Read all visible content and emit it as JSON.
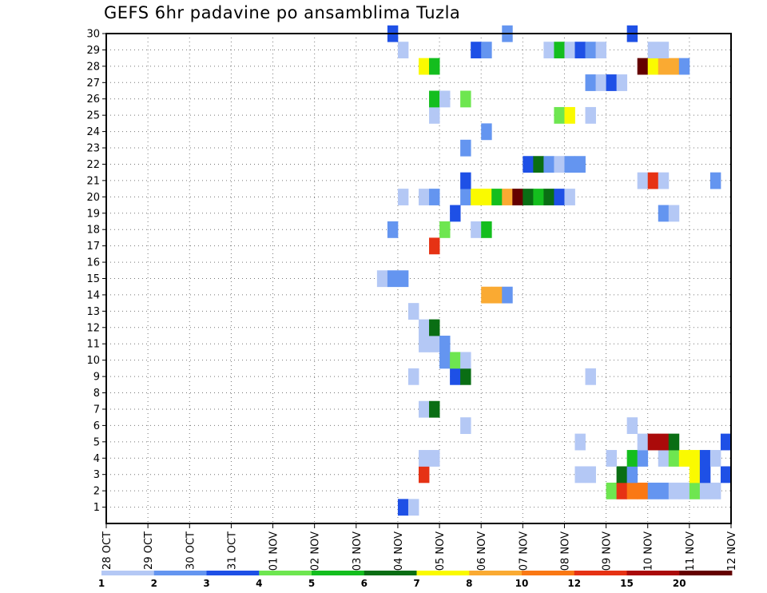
{
  "chart_data": {
    "type": "heatmap",
    "title": "GEFS 6hr padavine po ansamblima Tuzla",
    "x_tick_labels": [
      "28 OCT",
      "29 OCT",
      "30 OCT",
      "31 OCT",
      "01 NOV",
      "02 NOV",
      "03 NOV",
      "04 NOV",
      "05 NOV",
      "06 NOV",
      "07 NOV",
      "08 NOV",
      "09 NOV",
      "10 NOV",
      "11 NOV",
      "12 NOV"
    ],
    "y_tick_labels": [
      "1",
      "2",
      "3",
      "4",
      "5",
      "6",
      "7",
      "8",
      "9",
      "10",
      "11",
      "12",
      "13",
      "14",
      "15",
      "16",
      "17",
      "18",
      "19",
      "20",
      "21",
      "22",
      "23",
      "24",
      "25",
      "26",
      "27",
      "28",
      "29",
      "30"
    ],
    "y_range": [
      0,
      30
    ],
    "time_steps_per_day": 4,
    "grid": true,
    "colorbar": {
      "labels": [
        "1",
        "2",
        "3",
        "4",
        "5",
        "6",
        "7",
        "8",
        "10",
        "12",
        "15",
        "20"
      ],
      "colors": [
        "#b4c8f5",
        "#6495f0",
        "#1e50e6",
        "#6ee650",
        "#14be1e",
        "#0a6e14",
        "#fafa00",
        "#faaa32",
        "#fa7814",
        "#e63214",
        "#aa0a0a",
        "#640000"
      ]
    },
    "cells_format": "member: [[time_index, color_class], ...]  time_index = 6-hour steps from 28 OCT 00Z; color_class = index into colorbar.colors",
    "cells": {
      "30": [
        [
          27,
          2
        ],
        [
          38,
          1
        ],
        [
          50,
          2
        ]
      ],
      "29": [
        [
          28,
          0
        ],
        [
          35,
          2
        ],
        [
          36,
          1
        ],
        [
          42,
          0
        ],
        [
          43,
          4
        ],
        [
          44,
          0
        ],
        [
          45,
          2
        ],
        [
          46,
          1
        ],
        [
          47,
          0
        ],
        [
          52,
          0
        ],
        [
          53,
          0
        ]
      ],
      "28": [
        [
          30,
          6
        ],
        [
          31,
          4
        ],
        [
          51,
          11
        ],
        [
          52,
          6
        ],
        [
          53,
          7
        ],
        [
          54,
          7
        ],
        [
          55,
          1
        ]
      ],
      "27": [
        [
          46,
          1
        ],
        [
          47,
          0
        ],
        [
          48,
          2
        ],
        [
          49,
          0
        ]
      ],
      "26": [
        [
          31,
          4
        ],
        [
          32,
          0
        ],
        [
          34,
          3
        ]
      ],
      "25": [
        [
          31,
          0
        ],
        [
          43,
          3
        ],
        [
          44,
          6
        ],
        [
          46,
          0
        ]
      ],
      "24": [
        [
          36,
          1
        ]
      ],
      "23": [
        [
          34,
          1
        ]
      ],
      "22": [
        [
          40,
          2
        ],
        [
          41,
          5
        ],
        [
          42,
          1
        ],
        [
          43,
          0
        ],
        [
          44,
          1
        ],
        [
          45,
          1
        ]
      ],
      "21": [
        [
          34,
          2
        ],
        [
          51,
          0
        ],
        [
          52,
          9
        ],
        [
          53,
          0
        ],
        [
          58,
          1
        ]
      ],
      "20": [
        [
          28,
          0
        ],
        [
          30,
          0
        ],
        [
          31,
          1
        ],
        [
          34,
          1
        ],
        [
          35,
          6
        ],
        [
          36,
          6
        ],
        [
          37,
          4
        ],
        [
          38,
          7
        ],
        [
          39,
          11
        ],
        [
          40,
          5
        ],
        [
          41,
          4
        ],
        [
          42,
          5
        ],
        [
          43,
          2
        ],
        [
          44,
          0
        ]
      ],
      "19": [
        [
          33,
          2
        ],
        [
          53,
          1
        ],
        [
          54,
          0
        ]
      ],
      "18": [
        [
          27,
          1
        ],
        [
          32,
          3
        ],
        [
          35,
          0
        ],
        [
          36,
          4
        ]
      ],
      "17": [
        [
          31,
          9
        ]
      ],
      "16": [],
      "15": [
        [
          26,
          0
        ],
        [
          27,
          1
        ],
        [
          28,
          1
        ]
      ],
      "14": [
        [
          36,
          7
        ],
        [
          37,
          7
        ],
        [
          38,
          1
        ]
      ],
      "13": [
        [
          29,
          0
        ]
      ],
      "12": [
        [
          30,
          0
        ],
        [
          31,
          5
        ]
      ],
      "11": [
        [
          30,
          0
        ],
        [
          31,
          0
        ],
        [
          32,
          1
        ]
      ],
      "10": [
        [
          32,
          1
        ],
        [
          33,
          3
        ],
        [
          34,
          0
        ]
      ],
      "9": [
        [
          29,
          0
        ],
        [
          33,
          2
        ],
        [
          34,
          5
        ],
        [
          46,
          0
        ]
      ],
      "8": [],
      "7": [
        [
          30,
          0
        ],
        [
          31,
          5
        ]
      ],
      "6": [
        [
          34,
          0
        ],
        [
          50,
          0
        ]
      ],
      "5": [
        [
          45,
          0
        ],
        [
          51,
          0
        ],
        [
          52,
          10
        ],
        [
          53,
          10
        ],
        [
          54,
          5
        ],
        [
          59,
          2
        ]
      ],
      "4": [
        [
          30,
          0
        ],
        [
          31,
          0
        ],
        [
          48,
          0
        ],
        [
          50,
          4
        ],
        [
          51,
          1
        ],
        [
          53,
          0
        ],
        [
          54,
          3
        ],
        [
          55,
          6
        ],
        [
          56,
          6
        ],
        [
          57,
          2
        ],
        [
          58,
          0
        ]
      ],
      "3": [
        [
          30,
          9
        ],
        [
          45,
          0
        ],
        [
          46,
          0
        ],
        [
          49,
          5
        ],
        [
          50,
          1
        ],
        [
          56,
          6
        ],
        [
          57,
          2
        ],
        [
          59,
          2
        ]
      ],
      "2": [
        [
          48,
          3
        ],
        [
          49,
          9
        ],
        [
          50,
          8
        ],
        [
          51,
          8
        ],
        [
          52,
          1
        ],
        [
          53,
          1
        ],
        [
          54,
          0
        ],
        [
          55,
          0
        ],
        [
          56,
          3
        ],
        [
          57,
          0
        ],
        [
          58,
          0
        ]
      ],
      "1": [
        [
          28,
          2
        ],
        [
          29,
          0
        ]
      ]
    }
  }
}
